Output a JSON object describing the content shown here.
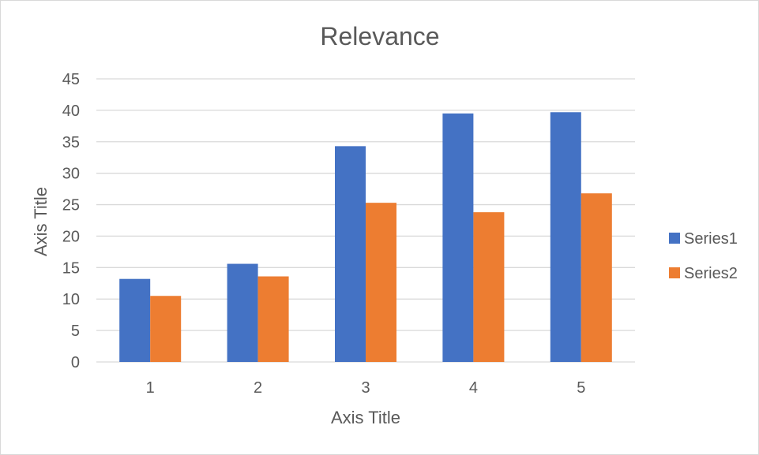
{
  "chart_data": {
    "type": "bar",
    "title": "Relevance",
    "xlabel": "Axis Title",
    "ylabel": "Axis Title",
    "categories": [
      "1",
      "2",
      "3",
      "4",
      "5"
    ],
    "series": [
      {
        "name": "Series1",
        "color": "#4472c4",
        "values": [
          13.2,
          15.6,
          34.3,
          39.5,
          39.7
        ]
      },
      {
        "name": "Series2",
        "color": "#ed7d31",
        "values": [
          10.5,
          13.6,
          25.3,
          23.8,
          26.8
        ]
      }
    ],
    "ylim": [
      0,
      45
    ],
    "yticks": [
      "0",
      "5",
      "10",
      "15",
      "20",
      "25",
      "30",
      "35",
      "40",
      "45"
    ],
    "grid": true,
    "legend_position": "right",
    "gridline_color": "#d9d9d9"
  }
}
